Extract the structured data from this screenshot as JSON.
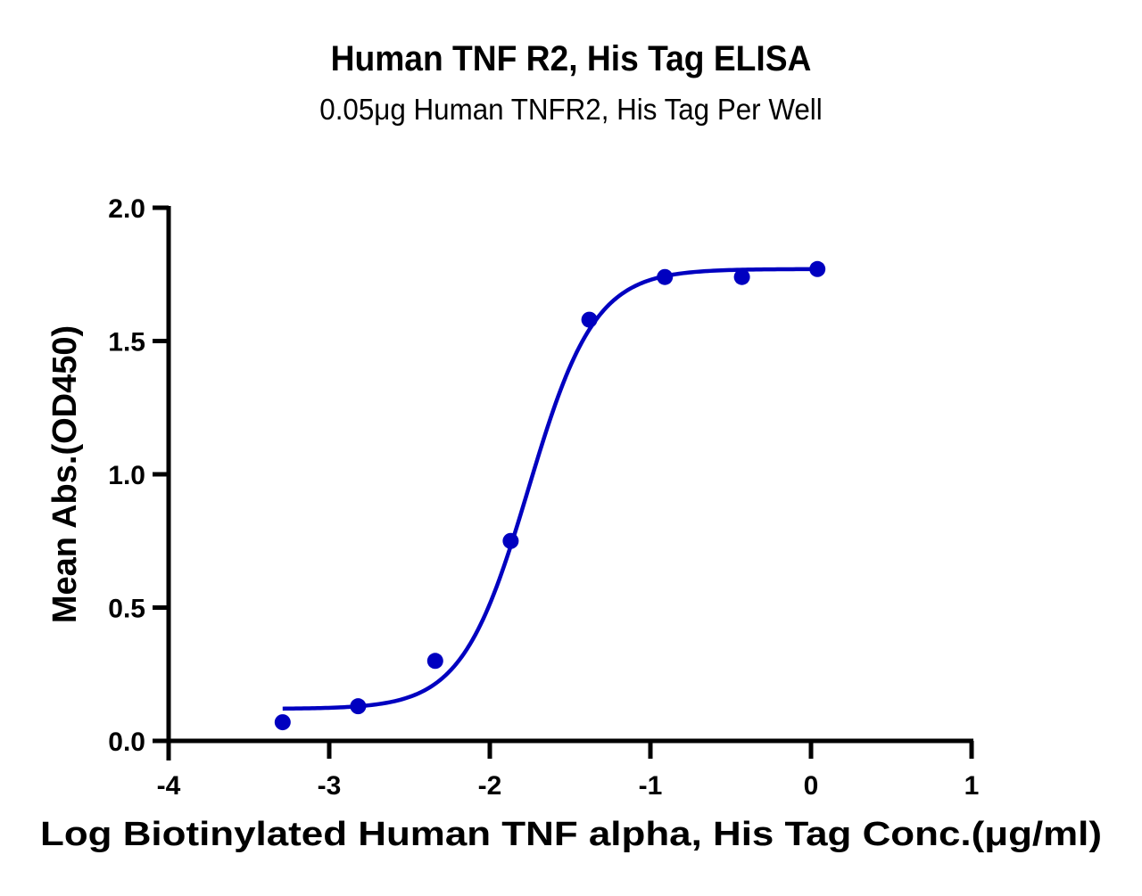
{
  "header": {
    "title": "Human TNF R2, His Tag ELISA",
    "subtitle": "0.05μg Human TNFR2, His Tag Per Well"
  },
  "colors": {
    "series": "#0000c0",
    "axis": "#000000",
    "background": "#ffffff"
  },
  "chart_data": {
    "type": "scatter",
    "title": "Human TNF R2, His Tag ELISA",
    "subtitle": "0.05μg Human TNFR2, His Tag Per Well",
    "xlabel": "Log Biotinylated Human TNF alpha, His Tag Conc.(μg/ml)",
    "ylabel": "Mean Abs.(OD450)",
    "xlim": [
      -4,
      1
    ],
    "ylim": [
      0,
      2.0
    ],
    "x_ticks": [
      "-4",
      "-3",
      "-2",
      "-1",
      "0",
      "1"
    ],
    "y_ticks": [
      "0.0",
      "0.5",
      "1.0",
      "1.5",
      "2.0"
    ],
    "grid": false,
    "legend": null,
    "series": [
      {
        "name": "Mean Abs.(OD450)",
        "x": [
          -3.29,
          -2.82,
          -2.34,
          -1.87,
          -1.38,
          -0.91,
          -0.43,
          0.04
        ],
        "y": [
          0.07,
          0.13,
          0.3,
          0.75,
          1.58,
          1.74,
          1.74,
          1.77
        ]
      }
    ],
    "fit_curve": {
      "model": "4PL",
      "bottom": 0.12,
      "top": 1.77,
      "logEC50": -1.76,
      "hill_slope": 2.1,
      "x_range": [
        -3.29,
        0.04
      ]
    }
  }
}
